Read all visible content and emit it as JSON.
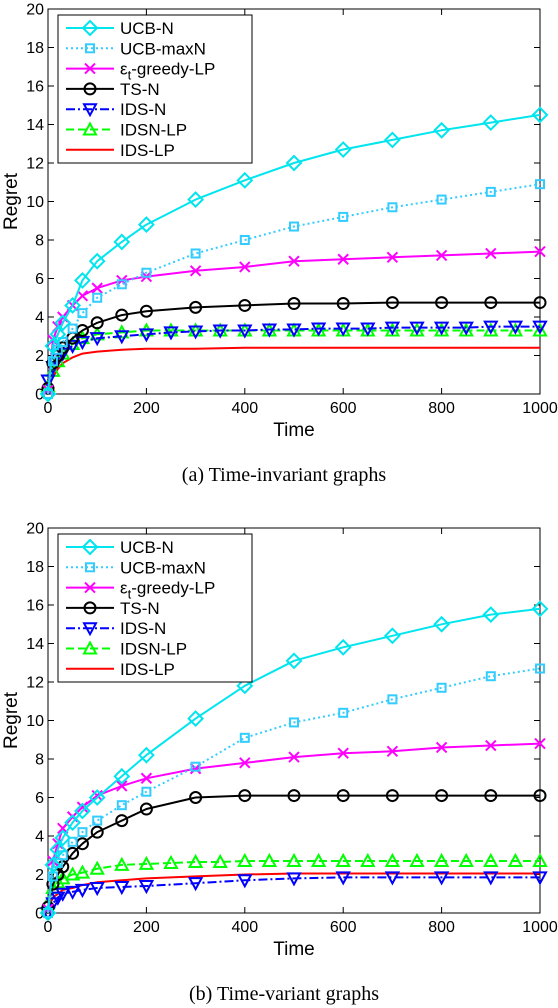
{
  "chart_data": [
    {
      "type": "line",
      "caption": "(a) Time-invariant graphs",
      "xlabel": "Time",
      "ylabel": "Regret",
      "xlim": [
        0,
        1000
      ],
      "ylim": [
        0,
        20
      ],
      "xticks": [
        0,
        200,
        400,
        600,
        800,
        1000
      ],
      "yticks": [
        0,
        2,
        4,
        6,
        8,
        10,
        12,
        14,
        16,
        18,
        20
      ],
      "legend_position": "top-left",
      "grid": false,
      "series": [
        {
          "name": "UCB-N",
          "color": "#00e5ee",
          "dash": "",
          "marker": "diamond",
          "x": [
            0,
            10,
            20,
            30,
            50,
            70,
            100,
            150,
            200,
            300,
            400,
            500,
            600,
            700,
            800,
            900,
            1000
          ],
          "y": [
            0,
            2.5,
            3.1,
            3.7,
            4.6,
            5.9,
            6.9,
            7.9,
            8.8,
            10.1,
            11.1,
            12.0,
            12.7,
            13.2,
            13.7,
            14.1,
            14.5
          ]
        },
        {
          "name": "UCB-maxN",
          "color": "#33ccff",
          "dash": "2,3",
          "marker": "square",
          "x": [
            0,
            10,
            20,
            30,
            50,
            70,
            100,
            150,
            200,
            300,
            400,
            500,
            600,
            700,
            800,
            900,
            1000
          ],
          "y": [
            0,
            1.7,
            2.3,
            2.7,
            3.4,
            4.2,
            5.0,
            5.7,
            6.3,
            7.3,
            8.0,
            8.7,
            9.2,
            9.7,
            10.1,
            10.5,
            10.9
          ]
        },
        {
          "name": "ε_t-greedy-LP",
          "color": "#ff00ff",
          "dash": "",
          "marker": "x",
          "x": [
            0,
            10,
            20,
            30,
            50,
            70,
            100,
            150,
            200,
            300,
            400,
            500,
            600,
            700,
            800,
            900,
            1000
          ],
          "y": [
            0.2,
            2.8,
            3.5,
            4.0,
            4.6,
            5.1,
            5.5,
            5.9,
            6.1,
            6.4,
            6.6,
            6.9,
            7.0,
            7.1,
            7.2,
            7.3,
            7.4
          ]
        },
        {
          "name": "TS-N",
          "color": "#000000",
          "dash": "",
          "marker": "circle",
          "x": [
            0,
            10,
            20,
            30,
            50,
            70,
            100,
            150,
            200,
            300,
            400,
            500,
            600,
            700,
            800,
            900,
            1000
          ],
          "y": [
            0.3,
            1.6,
            2.0,
            2.4,
            2.9,
            3.3,
            3.7,
            4.1,
            4.3,
            4.5,
            4.6,
            4.7,
            4.7,
            4.75,
            4.75,
            4.75,
            4.75
          ]
        },
        {
          "name": "IDS-N",
          "color": "#0000ff",
          "dash": "9,3,2,3",
          "marker": "tri-down",
          "x": [
            0,
            10,
            20,
            30,
            50,
            70,
            100,
            150,
            200,
            250,
            300,
            350,
            400,
            450,
            500,
            550,
            600,
            650,
            700,
            750,
            800,
            850,
            900,
            950,
            1000
          ],
          "y": [
            0.7,
            1.4,
            1.8,
            2.1,
            2.5,
            2.7,
            2.9,
            3.0,
            3.1,
            3.2,
            3.25,
            3.3,
            3.3,
            3.35,
            3.35,
            3.4,
            3.4,
            3.4,
            3.45,
            3.45,
            3.45,
            3.45,
            3.5,
            3.5,
            3.5
          ]
        },
        {
          "name": "IDSN-LP",
          "color": "#00ff00",
          "dash": "8,4",
          "marker": "tri-up",
          "x": [
            0,
            10,
            20,
            30,
            50,
            70,
            100,
            150,
            200,
            250,
            300,
            350,
            400,
            450,
            500,
            550,
            600,
            650,
            700,
            750,
            800,
            850,
            900,
            950,
            1000
          ],
          "y": [
            0.4,
            1.2,
            1.7,
            2.1,
            2.6,
            2.9,
            3.1,
            3.2,
            3.3,
            3.3,
            3.3,
            3.3,
            3.3,
            3.3,
            3.3,
            3.3,
            3.3,
            3.3,
            3.3,
            3.3,
            3.3,
            3.3,
            3.3,
            3.3,
            3.3
          ]
        },
        {
          "name": "IDS-LP",
          "color": "#ff0000",
          "dash": "",
          "marker": "none",
          "x": [
            0,
            10,
            20,
            30,
            50,
            70,
            100,
            150,
            200,
            300,
            400,
            500,
            600,
            700,
            800,
            900,
            1000
          ],
          "y": [
            0.2,
            0.9,
            1.3,
            1.6,
            1.9,
            2.1,
            2.2,
            2.3,
            2.35,
            2.35,
            2.4,
            2.4,
            2.4,
            2.4,
            2.4,
            2.4,
            2.4
          ]
        }
      ]
    },
    {
      "type": "line",
      "caption": "(b) Time-variant graphs",
      "xlabel": "Time",
      "ylabel": "Regret",
      "xlim": [
        0,
        1000
      ],
      "ylim": [
        0,
        20
      ],
      "xticks": [
        0,
        200,
        400,
        600,
        800,
        1000
      ],
      "yticks": [
        0,
        2,
        4,
        6,
        8,
        10,
        12,
        14,
        16,
        18,
        20
      ],
      "legend_position": "top-left",
      "grid": false,
      "series": [
        {
          "name": "UCB-N",
          "color": "#00e5ee",
          "dash": "",
          "marker": "diamond",
          "x": [
            0,
            10,
            20,
            30,
            50,
            70,
            100,
            150,
            200,
            300,
            400,
            500,
            600,
            700,
            800,
            900,
            1000
          ],
          "y": [
            0,
            2.5,
            3.3,
            3.9,
            4.7,
            5.3,
            6.0,
            7.1,
            8.2,
            10.1,
            11.8,
            13.1,
            13.8,
            14.4,
            15.0,
            15.5,
            15.8
          ]
        },
        {
          "name": "UCB-maxN",
          "color": "#33ccff",
          "dash": "2,3",
          "marker": "square",
          "x": [
            0,
            10,
            20,
            30,
            50,
            70,
            100,
            150,
            200,
            300,
            400,
            500,
            600,
            700,
            800,
            900,
            1000
          ],
          "y": [
            0,
            1.9,
            2.6,
            3.0,
            3.7,
            4.2,
            4.8,
            5.6,
            6.3,
            7.6,
            9.1,
            9.9,
            10.4,
            11.1,
            11.7,
            12.3,
            12.7
          ]
        },
        {
          "name": "ε_t-greedy-LP",
          "color": "#ff00ff",
          "dash": "",
          "marker": "x",
          "x": [
            0,
            10,
            20,
            30,
            50,
            70,
            100,
            150,
            200,
            300,
            400,
            500,
            600,
            700,
            800,
            900,
            1000
          ],
          "y": [
            0.2,
            2.7,
            3.6,
            4.4,
            5.0,
            5.5,
            6.1,
            6.6,
            7.0,
            7.5,
            7.8,
            8.1,
            8.3,
            8.4,
            8.6,
            8.7,
            8.8
          ]
        },
        {
          "name": "TS-N",
          "color": "#000000",
          "dash": "",
          "marker": "circle",
          "x": [
            0,
            10,
            20,
            30,
            50,
            70,
            100,
            150,
            200,
            300,
            400,
            500,
            600,
            700,
            800,
            900,
            1000
          ],
          "y": [
            0.3,
            1.5,
            2.0,
            2.4,
            3.1,
            3.6,
            4.2,
            4.8,
            5.4,
            6.0,
            6.1,
            6.1,
            6.1,
            6.1,
            6.1,
            6.1,
            6.1
          ]
        },
        {
          "name": "IDS-N",
          "color": "#0000ff",
          "dash": "9,3,2,3",
          "marker": "tri-down",
          "x": [
            0,
            10,
            20,
            30,
            50,
            70,
            100,
            150,
            200,
            300,
            400,
            500,
            600,
            700,
            800,
            900,
            1000
          ],
          "y": [
            0,
            0.5,
            0.8,
            1.0,
            1.1,
            1.2,
            1.3,
            1.35,
            1.4,
            1.55,
            1.7,
            1.8,
            1.85,
            1.85,
            1.85,
            1.85,
            1.85
          ]
        },
        {
          "name": "IDSN-LP",
          "color": "#00ff00",
          "dash": "8,4",
          "marker": "tri-up",
          "x": [
            0,
            10,
            20,
            30,
            50,
            70,
            100,
            150,
            200,
            250,
            300,
            350,
            400,
            450,
            500,
            550,
            600,
            650,
            700,
            750,
            800,
            850,
            900,
            950,
            1000
          ],
          "y": [
            0.5,
            1.3,
            1.6,
            1.8,
            2.0,
            2.1,
            2.3,
            2.5,
            2.55,
            2.6,
            2.65,
            2.65,
            2.7,
            2.7,
            2.7,
            2.7,
            2.7,
            2.7,
            2.7,
            2.7,
            2.7,
            2.7,
            2.7,
            2.7,
            2.7
          ]
        },
        {
          "name": "IDS-LP",
          "color": "#ff0000",
          "dash": "",
          "marker": "none",
          "x": [
            0,
            10,
            20,
            30,
            50,
            70,
            100,
            150,
            200,
            300,
            400,
            500,
            600,
            700,
            800,
            900,
            1000
          ],
          "y": [
            0.2,
            0.8,
            1.0,
            1.2,
            1.3,
            1.45,
            1.6,
            1.7,
            1.8,
            1.9,
            2.0,
            2.05,
            2.05,
            2.05,
            2.05,
            2.05,
            2.05
          ]
        }
      ]
    }
  ]
}
